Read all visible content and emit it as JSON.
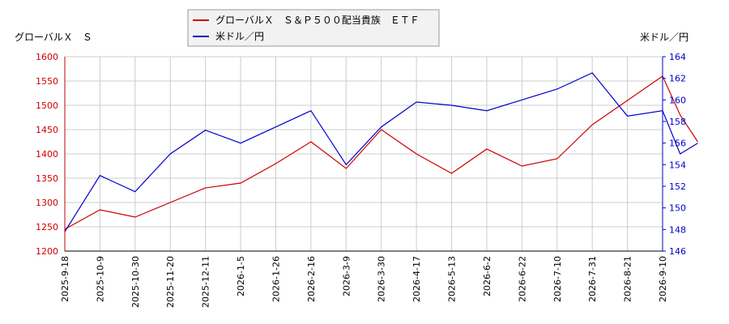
{
  "chart_data": {
    "type": "line",
    "legend": [
      "グローバルＸ　Ｓ＆Ｐ５００配当貴族　ＥＴＦ",
      "米ドル／円"
    ],
    "left_axis_title": "グローバルＸ　Ｓ",
    "right_axis_title": "米ドル／円",
    "left_ylim": [
      1200,
      1600
    ],
    "right_ylim": [
      146,
      164
    ],
    "left_ticks": [
      1200,
      1250,
      1300,
      1350,
      1400,
      1450,
      1500,
      1550,
      1600
    ],
    "right_ticks": [
      146,
      148,
      150,
      152,
      154,
      156,
      158,
      160,
      162,
      164
    ],
    "x_labels": [
      "2025-9-18",
      "2025-10-9",
      "2025-10-30",
      "2025-11-20",
      "2025-12-11",
      "2026-1-5",
      "2026-1-26",
      "2026-2-16",
      "2026-3-9",
      "2026-3-30",
      "2026-4-17",
      "2026-5-13",
      "2026-6-2",
      "2026-6-22",
      "2026-7-10",
      "2026-7-31",
      "2026-8-21",
      "2026-9-10"
    ],
    "grid": true,
    "legend_placement": "top",
    "series": [
      {
        "name": "グローバルＸ　Ｓ＆Ｐ５００配当貴族　ＥＴＦ",
        "axis": "left",
        "color": "#cc0000",
        "x": [
          0,
          1,
          2,
          3,
          4,
          5,
          6,
          7,
          8,
          9,
          10,
          11,
          12,
          13,
          14,
          15,
          16,
          17,
          17.5,
          18
        ],
        "values": [
          1245,
          1285,
          1270,
          1300,
          1330,
          1340,
          1380,
          1425,
          1370,
          1450,
          1400,
          1360,
          1410,
          1375,
          1390,
          1460,
          1510,
          1560,
          1480,
          1425
        ]
      },
      {
        "name": "米ドル／円",
        "axis": "right",
        "color": "#0000cc",
        "x": [
          0,
          1,
          2,
          3,
          4,
          5,
          6,
          7,
          8,
          9,
          10,
          11,
          12,
          13,
          14,
          15,
          16,
          17,
          17.5,
          18
        ],
        "values": [
          147.8,
          153.0,
          151.5,
          155.0,
          157.2,
          156.0,
          157.5,
          159.0,
          154.0,
          157.5,
          159.8,
          159.5,
          159.0,
          160.0,
          161.0,
          162.5,
          158.5,
          159.0,
          155.0,
          156.0
        ]
      }
    ]
  }
}
